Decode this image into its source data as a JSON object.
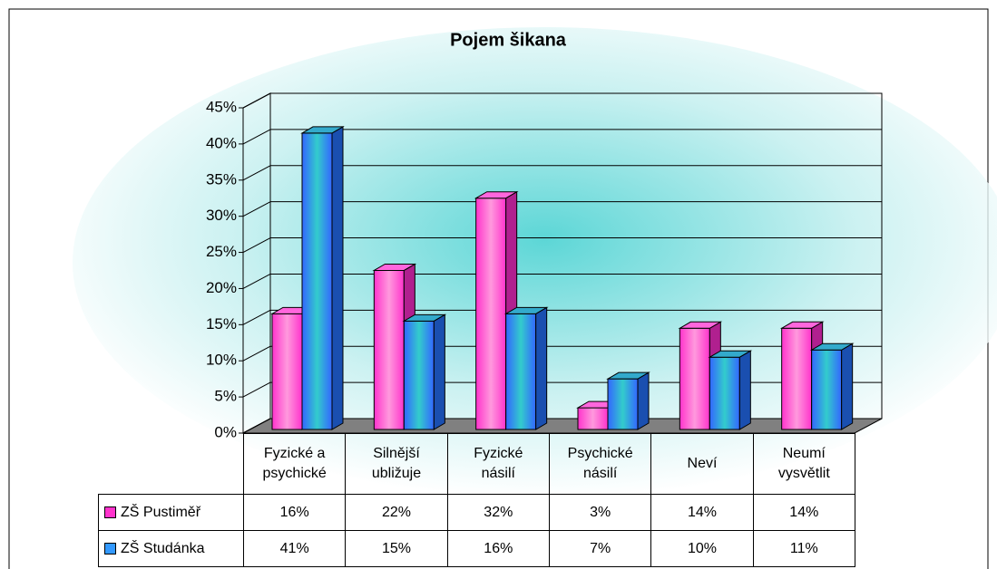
{
  "chart_data": {
    "type": "bar3d",
    "title": "Pojem šikana",
    "categories": [
      "Fyzické a psychické",
      "Silnější ubližuje",
      "Fyzické násilí",
      "Psychické násilí",
      "Neví",
      "Neumí vysvětlit"
    ],
    "series": [
      {
        "name": "ZŠ Pustiměř",
        "color": "#ff33cc",
        "values": [
          16,
          22,
          32,
          3,
          14,
          14
        ],
        "value_labels": [
          "16%",
          "22%",
          "32%",
          "3%",
          "14%",
          "14%"
        ]
      },
      {
        "name": "ZŠ Studánka",
        "color": "#3399ff",
        "values": [
          41,
          15,
          16,
          7,
          10,
          11
        ],
        "value_labels": [
          "41%",
          "15%",
          "16%",
          "7%",
          "10%",
          "11%"
        ]
      }
    ],
    "ylim": [
      0,
      45
    ],
    "yticks": [
      {
        "value": 0,
        "label": "0%"
      },
      {
        "value": 5,
        "label": "5%"
      },
      {
        "value": 10,
        "label": "10%"
      },
      {
        "value": 15,
        "label": "15%"
      },
      {
        "value": 20,
        "label": "20%"
      },
      {
        "value": 25,
        "label": "25%"
      },
      {
        "value": 30,
        "label": "30%"
      },
      {
        "value": 35,
        "label": "35%"
      },
      {
        "value": 40,
        "label": "40%"
      },
      {
        "value": 45,
        "label": "45%"
      }
    ],
    "grid": true,
    "data_table": true
  }
}
